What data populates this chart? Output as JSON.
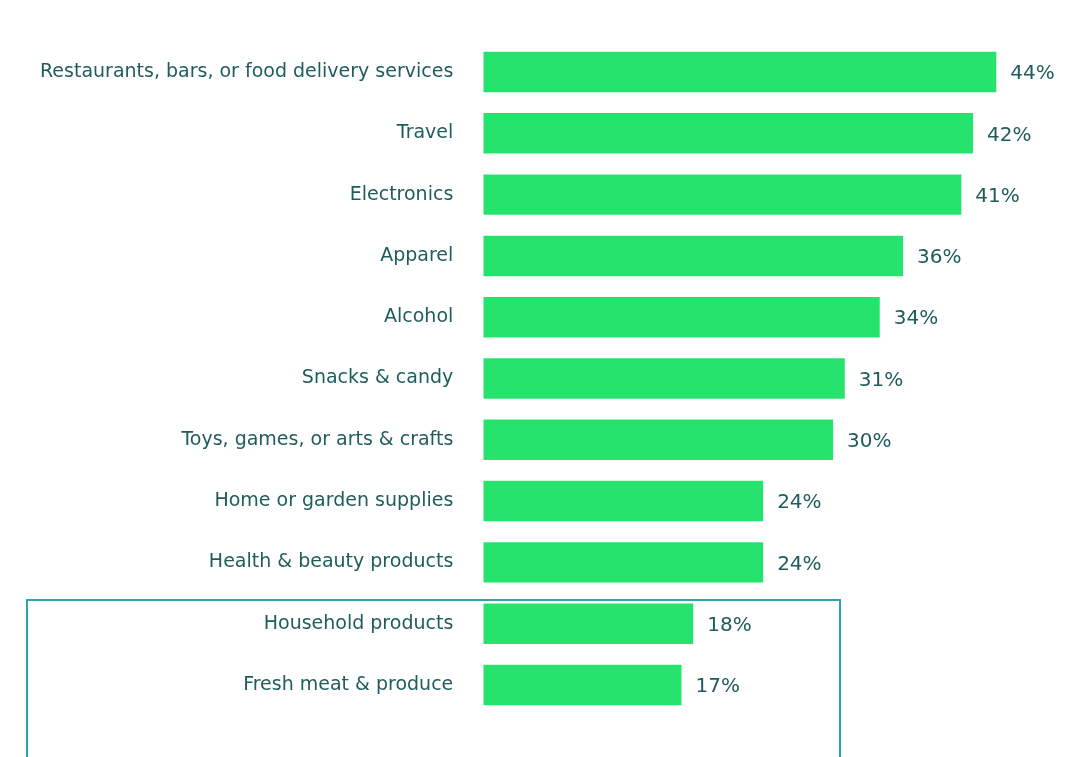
{
  "chart_data": {
    "type": "bar",
    "orientation": "horizontal",
    "categories": [
      "Restaurants, bars, or food delivery services",
      "Travel",
      "Electronics",
      "Apparel",
      "Alcohol",
      "Snacks & candy",
      "Toys, games, or arts & crafts",
      "Home or garden supplies",
      "Health & beauty products",
      "Household products",
      "Fresh meat & produce"
    ],
    "values": [
      44,
      42,
      41,
      36,
      34,
      31,
      30,
      24,
      24,
      18,
      17
    ],
    "value_labels": [
      "44%",
      "42%",
      "41%",
      "36%",
      "34%",
      "31%",
      "30%",
      "24%",
      "24%",
      "18%",
      "17%"
    ],
    "color": "#26e36e",
    "legend": false
  }
}
